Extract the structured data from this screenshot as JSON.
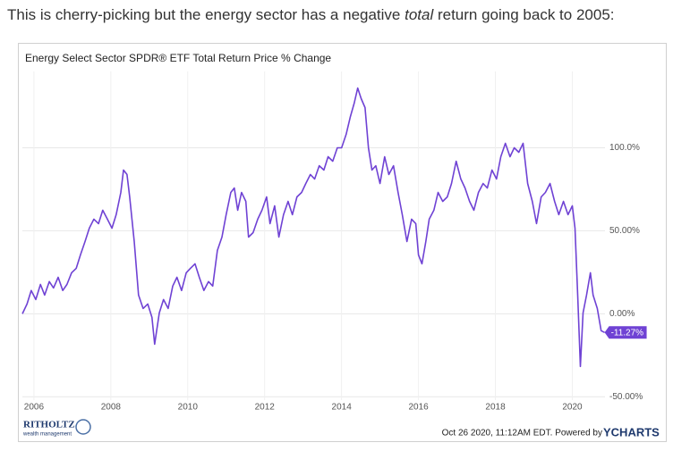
{
  "header": {
    "text_before": "This is cherry-picking but the energy sector has a negative ",
    "text_italic": "total",
    "text_after": " return going back to 2005:"
  },
  "chart_data": {
    "type": "line",
    "title": "Energy Select Sector SPDR® ETF Total Return Price % Change",
    "x": [
      2005.7,
      2005.82,
      2005.93,
      2006.05,
      2006.17,
      2006.28,
      2006.4,
      2006.51,
      2006.63,
      2006.75,
      2006.86,
      2006.98,
      2007.1,
      2007.21,
      2007.33,
      2007.44,
      2007.56,
      2007.68,
      2007.79,
      2007.91,
      2008.03,
      2008.14,
      2008.26,
      2008.33,
      2008.42,
      2008.49,
      2008.61,
      2008.72,
      2008.84,
      2008.96,
      2009.07,
      2009.14,
      2009.26,
      2009.37,
      2009.49,
      2009.61,
      2009.72,
      2009.84,
      2009.96,
      2010.07,
      2010.19,
      2010.3,
      2010.42,
      2010.54,
      2010.65,
      2010.77,
      2010.89,
      2011.0,
      2011.12,
      2011.21,
      2011.3,
      2011.4,
      2011.51,
      2011.58,
      2011.7,
      2011.82,
      2011.93,
      2012.05,
      2012.14,
      2012.26,
      2012.37,
      2012.49,
      2012.61,
      2012.72,
      2012.84,
      2012.96,
      2013.07,
      2013.19,
      2013.3,
      2013.42,
      2013.54,
      2013.65,
      2013.77,
      2013.89,
      2014.0,
      2014.12,
      2014.23,
      2014.33,
      2014.42,
      2014.51,
      2014.61,
      2014.7,
      2014.79,
      2014.89,
      2015.0,
      2015.12,
      2015.23,
      2015.35,
      2015.47,
      2015.58,
      2015.7,
      2015.82,
      2015.93,
      2016.0,
      2016.09,
      2016.19,
      2016.28,
      2016.4,
      2016.51,
      2016.63,
      2016.75,
      2016.86,
      2016.98,
      2017.1,
      2017.21,
      2017.33,
      2017.44,
      2017.56,
      2017.68,
      2017.79,
      2017.91,
      2018.03,
      2018.14,
      2018.26,
      2018.38,
      2018.49,
      2018.61,
      2018.72,
      2018.84,
      2018.96,
      2019.07,
      2019.19,
      2019.3,
      2019.42,
      2019.54,
      2019.65,
      2019.77,
      2019.89,
      2020.0,
      2020.07,
      2020.14,
      2020.21,
      2020.28,
      2020.37,
      2020.47,
      2020.54,
      2020.65,
      2020.75,
      2020.84
    ],
    "series": [
      {
        "color": "#6f42d4",
        "values": [
          0,
          5.9,
          14.0,
          8.6,
          17.7,
          11.3,
          19.4,
          15.6,
          22.0,
          14.0,
          17.7,
          24.7,
          27.4,
          35.5,
          43.5,
          51.6,
          57.0,
          54.3,
          62.4,
          57.0,
          51.6,
          59.7,
          73.1,
          86.6,
          83.9,
          70.4,
          43.5,
          11.3,
          3.2,
          5.9,
          -2.2,
          -18.3,
          0.5,
          8.6,
          3.2,
          16.7,
          22.0,
          14.0,
          24.7,
          27.4,
          30.1,
          22.0,
          14.0,
          19.4,
          16.7,
          38.2,
          46.2,
          59.7,
          73.1,
          75.8,
          62.4,
          73.1,
          67.7,
          46.2,
          48.9,
          57.0,
          62.4,
          70.4,
          54.3,
          65.0,
          46.2,
          59.7,
          67.7,
          59.7,
          70.4,
          73.1,
          78.5,
          83.9,
          81.2,
          89.2,
          86.6,
          94.6,
          91.9,
          100.0,
          100.0,
          108.1,
          118.8,
          126.9,
          136.0,
          129.6,
          124.2,
          100.0,
          86.6,
          89.2,
          78.5,
          94.6,
          83.9,
          89.2,
          73.1,
          59.7,
          43.5,
          57.0,
          54.3,
          35.5,
          30.1,
          43.5,
          57.0,
          62.4,
          73.1,
          67.7,
          70.4,
          78.5,
          91.9,
          81.2,
          75.8,
          67.7,
          62.4,
          73.1,
          78.5,
          75.8,
          86.6,
          81.2,
          94.6,
          102.7,
          94.6,
          100.0,
          97.3,
          102.7,
          78.5,
          67.7,
          54.3,
          70.4,
          73.1,
          78.5,
          67.7,
          59.7,
          67.7,
          59.7,
          65.0,
          51.6,
          11.3,
          -31.7,
          0.5,
          11.3,
          24.7,
          11.3,
          3.2,
          -10.2,
          -11.27
        ]
      }
    ],
    "annotations": [
      {
        "x": 2020.84,
        "y": -11.27,
        "label": "-11.27%"
      }
    ],
    "xlim": [
      2005.7,
      2020.85
    ],
    "xticks": [
      2006,
      2008,
      2010,
      2012,
      2014,
      2016,
      2018,
      2020
    ],
    "ylim": [
      -52,
      146
    ],
    "yticks": [
      {
        "value": -50,
        "label": "-50.00%"
      },
      {
        "value": 0,
        "label": "0.00%"
      },
      {
        "value": 50,
        "label": "50.00%"
      },
      {
        "value": 100,
        "label": "100.0%"
      }
    ],
    "grid": true
  },
  "footer": {
    "brand": "RITHOLTZ",
    "brand_sub": "wealth management",
    "timestamp": "Oct 26 2020, 11:12AM EDT. Powered by ",
    "provider": "YCHARTS"
  }
}
